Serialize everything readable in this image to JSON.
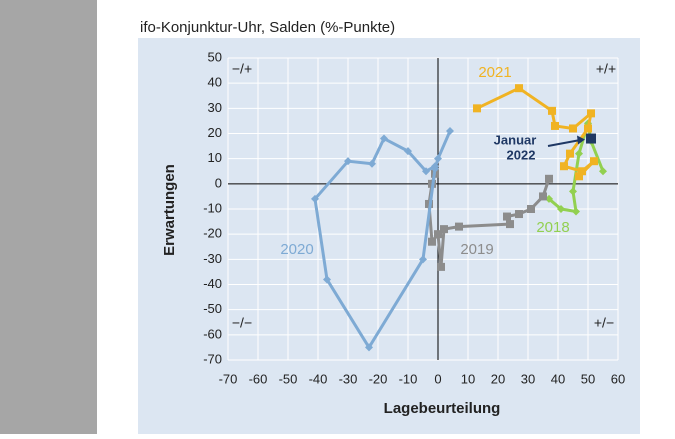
{
  "chart_data": {
    "type": "line",
    "title": "ifo-Konjunktur-Uhr, Salden (%-Punkte)",
    "x_label": "Lagebeurteilung",
    "y_label": "Erwartungen",
    "xlim": [
      -70,
      60
    ],
    "ylim": [
      -70,
      50
    ],
    "xticks": [
      -70,
      -60,
      -50,
      -40,
      -30,
      -20,
      -10,
      0,
      10,
      20,
      30,
      40,
      50,
      60
    ],
    "yticks": [
      -70,
      -60,
      -50,
      -40,
      -30,
      -20,
      -10,
      0,
      10,
      20,
      30,
      40,
      50
    ],
    "grid": true,
    "quadrant_labels": [
      "−/+",
      "+/+",
      "−/−",
      "+/−"
    ],
    "series": [
      {
        "name": "2018",
        "color": "#92d050",
        "marker": "diamond",
        "x": [
          37,
          41,
          46,
          45,
          47,
          50,
          51,
          55
        ],
        "y": [
          -6,
          -10,
          -11,
          -3,
          12,
          24,
          17,
          5
        ]
      },
      {
        "name": "2019",
        "color": "#8c8c8c",
        "marker": "square",
        "x": [
          37,
          35,
          31,
          27,
          23,
          24,
          7,
          2,
          1,
          0,
          -2,
          -3,
          -2,
          -1
        ],
        "y": [
          2,
          -5,
          -10,
          -12,
          -13,
          -16,
          -17,
          -18,
          -33,
          -20,
          -23,
          -8,
          0,
          4
        ]
      },
      {
        "name": "2020",
        "color": "#7eaad4",
        "marker": "diamond",
        "x": [
          -1,
          -4,
          -10,
          -18,
          -22,
          -30,
          -41,
          -37,
          -23,
          -5,
          -1,
          0,
          4
        ],
        "y": [
          7,
          5,
          13,
          18,
          8,
          9,
          -6,
          -38,
          -65,
          -30,
          6,
          10,
          21
        ]
      },
      {
        "name": "2021",
        "color": "#f0b323",
        "marker": "square",
        "x": [
          13,
          27,
          38,
          39,
          45,
          51,
          50,
          44,
          42,
          48,
          52,
          47
        ],
        "y": [
          30,
          38,
          29,
          23,
          22,
          28,
          22,
          12,
          7,
          5,
          9,
          3
        ]
      }
    ],
    "annotation": {
      "text": [
        "Januar",
        "2022"
      ],
      "color": "#1f3864",
      "x": 51,
      "y": 18
    }
  }
}
